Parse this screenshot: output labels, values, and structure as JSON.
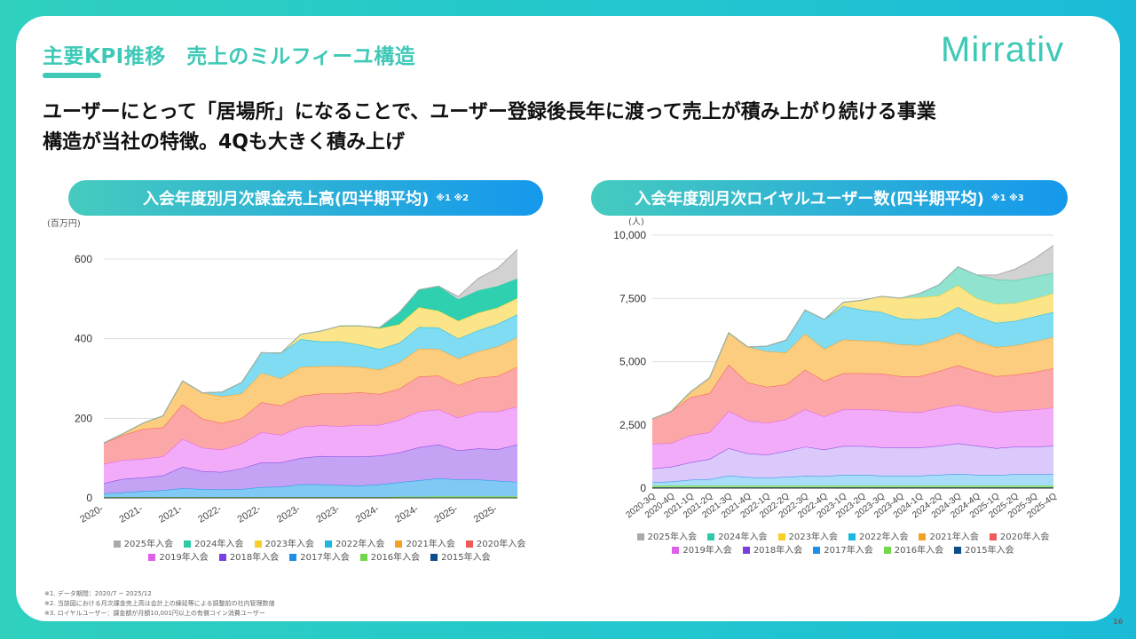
{
  "header": {
    "title": "主要KPI推移　売上のミルフィーユ構造",
    "logo": "Mirrativ",
    "lead_line1": "ユーザーにとって「居場所」になることで、ユーザー登録後長年に渡って売上が積み上がり続ける事業",
    "lead_line2": "構造が当社の特徴。4Qも大きく積み上げ"
  },
  "colors": {
    "accent": "#3ec9b7",
    "series": {
      "2025年入会": {
        "line": "#aaaaaa",
        "fill": "#d2d2d2"
      },
      "2024年入会": {
        "line": "#2ec9a6",
        "fill": "#2ed0b0"
      },
      "2023年入会": {
        "line": "#f8cf2a",
        "fill": "#fce588"
      },
      "2022年入会": {
        "line": "#1ab8e0",
        "fill": "#7fdcf3"
      },
      "2021年入会": {
        "line": "#f4a124",
        "fill": "#fccc7f"
      },
      "2020年入会": {
        "line": "#f05a5a",
        "fill": "#fca7a7"
      },
      "2019年入会": {
        "line": "#de5fe8",
        "fill": "#f2abf9"
      },
      "2018年入会": {
        "line": "#7a3fe0",
        "fill": "#c4a3f5"
      },
      "2017年入会": {
        "line": "#1e8fe6",
        "fill": "#7fc9f4"
      },
      "2016年入会": {
        "line": "#72d84a",
        "fill": "#9be57a"
      },
      "2015年入会": {
        "line": "#0d4c8a",
        "fill": "#0d4c8a"
      }
    }
  },
  "chart_data": [
    {
      "type": "area",
      "stacked": true,
      "title": "入会年度別月次課金売上高(四半期平均)",
      "title_note": "※1 ※2",
      "ylabel": "(百万円)",
      "ylim": [
        0,
        640
      ],
      "yticks": [
        "0",
        "200",
        "400",
        "600"
      ],
      "ytick_values": [
        0,
        200,
        400,
        600
      ],
      "xtick_labels": [
        "2020-",
        "2021-",
        "2021-",
        "2022-",
        "2022-",
        "2023-",
        "2023-",
        "2024-",
        "2024-",
        "2025-",
        "2025-"
      ],
      "grid": true,
      "legend": "bottom",
      "legend_rows": [
        [
          "2025年入会",
          "2024年入会",
          "2023年入会",
          "2022年入会",
          "2021年入会",
          "2020年入会"
        ],
        [
          "2019年入会",
          "2018年入会",
          "2017年入会",
          "2016年入会",
          "2015年入会"
        ]
      ],
      "series": [
        {
          "name": "2015年入会",
          "values": [
            1,
            1,
            1,
            1,
            1,
            1,
            1,
            1,
            1,
            1,
            1,
            1,
            1,
            1,
            1,
            1,
            1,
            1,
            1,
            1,
            1,
            1
          ]
        },
        {
          "name": "2016年入会",
          "values": [
            1,
            1,
            1,
            1,
            1,
            1,
            1,
            1,
            1,
            1,
            1,
            1,
            1,
            1,
            1,
            2,
            2,
            3,
            3,
            3,
            3,
            3
          ]
        },
        {
          "name": "2017年入会",
          "values": [
            9,
            12,
            15,
            17,
            22,
            20,
            19,
            20,
            25,
            26,
            32,
            32,
            30,
            29,
            32,
            36,
            41,
            45,
            42,
            42,
            39,
            36
          ]
        },
        {
          "name": "2018年入会",
          "values": [
            26,
            34,
            34,
            37,
            54,
            45,
            44,
            52,
            62,
            61,
            66,
            71,
            72,
            73,
            72,
            75,
            83,
            85,
            73,
            78,
            79,
            94
          ]
        },
        {
          "name": "2019年入会",
          "values": [
            48,
            47,
            47,
            48,
            70,
            59,
            56,
            62,
            76,
            69,
            78,
            77,
            76,
            79,
            77,
            82,
            90,
            88,
            82,
            93,
            95,
            95
          ]
        },
        {
          "name": "2020年入会",
          "values": [
            53,
            63,
            75,
            73,
            87,
            73,
            67,
            64,
            75,
            74,
            78,
            80,
            82,
            82,
            78,
            78,
            88,
            85,
            82,
            84,
            89,
            100
          ]
        },
        {
          "name": "2021年入会",
          "values": [
            0,
            4,
            15,
            29,
            59,
            65,
            67,
            62,
            74,
            68,
            73,
            69,
            69,
            64,
            61,
            66,
            70,
            67,
            67,
            67,
            74,
            74
          ]
        },
        {
          "name": "2022年入会",
          "values": [
            0,
            0,
            0,
            0,
            0,
            0,
            11,
            28,
            51,
            64,
            70,
            62,
            62,
            56,
            52,
            49,
            54,
            54,
            50,
            53,
            57,
            58
          ]
        },
        {
          "name": "2023年入会",
          "values": [
            0,
            0,
            0,
            0,
            0,
            0,
            0,
            0,
            0,
            0,
            12,
            26,
            39,
            47,
            52,
            47,
            50,
            42,
            45,
            44,
            41,
            41
          ]
        },
        {
          "name": "2024年入会",
          "values": [
            0,
            0,
            0,
            0,
            0,
            0,
            0,
            0,
            0,
            0,
            0,
            0,
            0,
            0,
            2,
            30,
            44,
            62,
            54,
            56,
            54,
            49
          ]
        },
        {
          "name": "2025年入会",
          "values": [
            0,
            0,
            0,
            0,
            0,
            0,
            0,
            0,
            0,
            0,
            0,
            0,
            0,
            0,
            0,
            0,
            0,
            0,
            7,
            30,
            45,
            73
          ]
        }
      ]
    },
    {
      "type": "area",
      "stacked": true,
      "title": "入会年度別月次ロイヤルユーザー数(四半期平均)",
      "title_note": "※1 ※3",
      "ylabel": "(人)",
      "ylim": [
        0,
        10000
      ],
      "yticks": [
        "0",
        "2,500",
        "5,000",
        "7,500",
        "10,000"
      ],
      "ytick_values": [
        0,
        2500,
        5000,
        7500,
        10000
      ],
      "categories": [
        "2020-3Q",
        "2020-4Q",
        "2021-1Q",
        "2021-2Q",
        "2021-3Q",
        "2021-4Q",
        "2022-1Q",
        "2022-2Q",
        "2022-3Q",
        "2022-4Q",
        "2023-1Q",
        "2023-2Q",
        "2023-3Q",
        "2023-4Q",
        "2024-1Q",
        "2024-2Q",
        "2024-3Q",
        "2024-4Q",
        "2025-1Q",
        "2025-2Q",
        "2025-3Q",
        "2025-4Q"
      ],
      "grid": true,
      "legend": "bottom",
      "legend_rows": [
        [
          "2025年入会",
          "2024年入会",
          "2023年入会",
          "2022年入会",
          "2021年入会",
          "2020年入会"
        ],
        [
          "2019年入会",
          "2018年入会",
          "2017年入会",
          "2016年入会",
          "2015年入会"
        ]
      ],
      "series": [
        {
          "name": "2015年入会",
          "values": [
            30,
            30,
            30,
            30,
            30,
            30,
            30,
            30,
            30,
            30,
            30,
            30,
            30,
            30,
            30,
            30,
            30,
            30,
            30,
            30,
            30,
            30
          ]
        },
        {
          "name": "2016年入会",
          "values": [
            70,
            70,
            70,
            70,
            70,
            70,
            70,
            70,
            70,
            70,
            70,
            70,
            70,
            70,
            70,
            70,
            70,
            70,
            70,
            70,
            70,
            70
          ]
        },
        {
          "name": "2017年入会",
          "values": [
            134,
            157,
            228,
            251,
            391,
            333,
            310,
            345,
            380,
            368,
            427,
            427,
            391,
            391,
            391,
            427,
            462,
            427,
            415,
            450,
            450,
            450
          ]
        },
        {
          "name": "2018年入会",
          "values": [
            538,
            585,
            690,
            796,
            1089,
            936,
            912,
            1018,
            1158,
            1053,
            1134,
            1134,
            1124,
            1112,
            1112,
            1146,
            1205,
            1146,
            1065,
            1088,
            1088,
            1123
          ]
        },
        {
          "name": "2019年入会",
          "values": [
            983,
            936,
            1065,
            1053,
            1462,
            1299,
            1252,
            1251,
            1474,
            1310,
            1451,
            1451,
            1474,
            1416,
            1392,
            1486,
            1532,
            1463,
            1415,
            1427,
            1462,
            1509
          ]
        },
        {
          "name": "2020年入会",
          "values": [
            983,
            1264,
            1509,
            1544,
            1837,
            1509,
            1427,
            1381,
            1568,
            1404,
            1428,
            1428,
            1439,
            1404,
            1428,
            1463,
            1557,
            1486,
            1428,
            1416,
            1486,
            1557
          ]
        },
        {
          "name": "2021年入会",
          "values": [
            0,
            0,
            211,
            620,
            1264,
            1404,
            1404,
            1264,
            1427,
            1264,
            1333,
            1287,
            1264,
            1252,
            1228,
            1228,
            1287,
            1181,
            1146,
            1158,
            1206,
            1228
          ]
        },
        {
          "name": "2022年入会",
          "values": [
            0,
            0,
            0,
            0,
            0,
            0,
            211,
            491,
            936,
            1170,
            1322,
            1216,
            1170,
            1029,
            1018,
            901,
            1017,
            983,
            960,
            971,
            994,
            995
          ]
        },
        {
          "name": "2023年入会",
          "values": [
            0,
            0,
            0,
            0,
            0,
            0,
            0,
            0,
            0,
            0,
            153,
            386,
            619,
            807,
            877,
            853,
            855,
            702,
            748,
            703,
            702,
            737
          ]
        },
        {
          "name": "2024年入会",
          "values": [
            0,
            0,
            0,
            0,
            0,
            0,
            0,
            0,
            0,
            0,
            0,
            0,
            0,
            0,
            153,
            434,
            737,
            936,
            972,
            901,
            878,
            807
          ]
        },
        {
          "name": "2025年入会",
          "values": [
            0,
            0,
            0,
            0,
            0,
            0,
            0,
            0,
            0,
            0,
            0,
            0,
            0,
            0,
            0,
            0,
            0,
            0,
            175,
            444,
            702,
            1088
          ]
        }
      ]
    }
  ],
  "footnotes": [
    "※1. データ期間：2020/7 ~ 2025/12",
    "※2. 当該図における月次課金売上高は会計上の繰延等による調整前の社内管理数値",
    "※3. ロイヤルユーザー：課金額が月額10,001円以上の有償コイン消費ユーザー"
  ],
  "page_number": "16"
}
